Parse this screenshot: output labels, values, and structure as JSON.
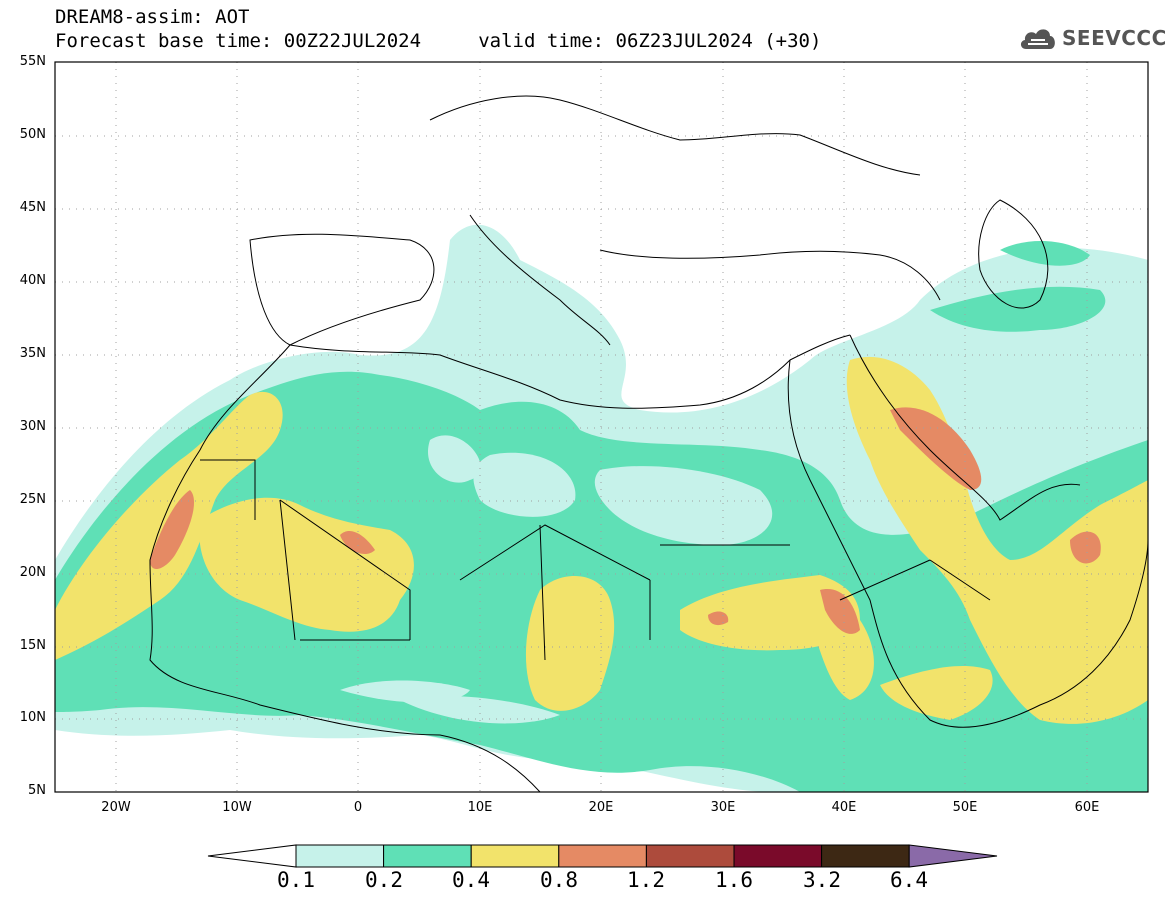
{
  "header": {
    "line1": "DREAM8-assim: AOT",
    "line2": "Forecast base time: 00Z22JUL2024     valid time: 06Z23JUL2024 (+30)"
  },
  "logo": {
    "text": "SEEVCCC",
    "icon": "cloud-icon"
  },
  "map": {
    "lat_labels": [
      "55N",
      "50N",
      "45N",
      "40N",
      "35N",
      "30N",
      "25N",
      "20N",
      "15N",
      "10N",
      "5N"
    ],
    "lon_labels": [
      "20W",
      "10W",
      "0",
      "10E",
      "20E",
      "30E",
      "40E",
      "50E",
      "60E"
    ],
    "grid": "dotted"
  },
  "colorbar": {
    "levels": [
      "0.1",
      "0.2",
      "0.4",
      "0.8",
      "1.2",
      "1.6",
      "3.2",
      "6.4"
    ],
    "colors": [
      "#c6f2ea",
      "#5fe0b6",
      "#f2e36b",
      "#e58a64",
      "#ad4b3c",
      "#7a0a2a",
      "#3d2814",
      "#8a6aa8"
    ]
  }
}
